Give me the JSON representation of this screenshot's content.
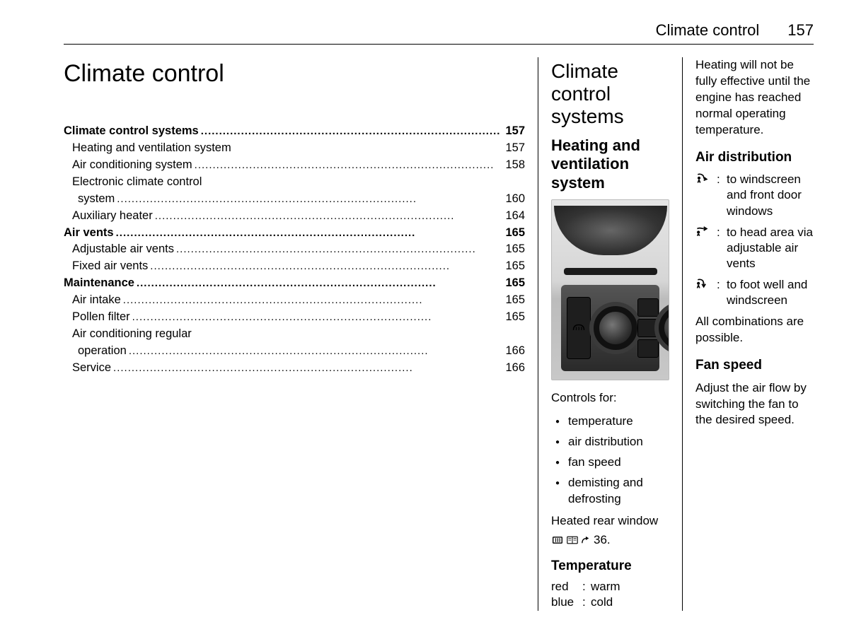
{
  "header": {
    "section_title": "Climate control",
    "page_number": "157"
  },
  "col1": {
    "chapter_title": "Climate control",
    "toc": [
      {
        "label": "Climate control systems",
        "page": "157",
        "bold": true,
        "indent": 0,
        "dots": true
      },
      {
        "label": "Heating and ventilation system",
        "page": "157",
        "bold": false,
        "indent": 1,
        "dots": false
      },
      {
        "label": "Air conditioning system",
        "page": "158",
        "bold": false,
        "indent": 1,
        "dots": true
      },
      {
        "label": "Electronic climate control",
        "page": "",
        "bold": false,
        "indent": 1,
        "dots": false
      },
      {
        "label": "system",
        "page": "160",
        "bold": false,
        "indent": 2,
        "dots": true
      },
      {
        "label": "Auxiliary heater",
        "page": "164",
        "bold": false,
        "indent": 1,
        "dots": true
      },
      {
        "label": "Air vents",
        "page": "165",
        "bold": true,
        "indent": 0,
        "dots": true
      },
      {
        "label": "Adjustable air vents",
        "page": "165",
        "bold": false,
        "indent": 1,
        "dots": true
      },
      {
        "label": "Fixed air vents",
        "page": "165",
        "bold": false,
        "indent": 1,
        "dots": true
      },
      {
        "label": "Maintenance",
        "page": "165",
        "bold": true,
        "indent": 0,
        "dots": true
      },
      {
        "label": "Air intake",
        "page": "165",
        "bold": false,
        "indent": 1,
        "dots": true
      },
      {
        "label": "Pollen filter",
        "page": "165",
        "bold": false,
        "indent": 1,
        "dots": true
      },
      {
        "label": "Air conditioning regular",
        "page": "",
        "bold": false,
        "indent": 1,
        "dots": false
      },
      {
        "label": "operation",
        "page": "166",
        "bold": false,
        "indent": 2,
        "dots": true
      },
      {
        "label": "Service",
        "page": "166",
        "bold": false,
        "indent": 1,
        "dots": true
      }
    ]
  },
  "col2": {
    "section_title": "Climate control systems",
    "subsection_title": "Heating and ventilation system",
    "controls_intro": "Controls for:",
    "controls": [
      "temperature",
      "air distribution",
      "fan speed",
      "demisting and defrosting"
    ],
    "heated_rear_window_text_a": "Heated rear window",
    "heated_rear_window_ref": "36.",
    "temperature_heading": "Temperature",
    "temperature_rows": [
      {
        "k": "red",
        "v": "warm"
      },
      {
        "k": "blue",
        "v": "cold"
      }
    ]
  },
  "col3": {
    "heating_note": "Heating will not be fully effective until the engine has reached normal operating temperature.",
    "air_dist_heading": "Air distribution",
    "air_dist_rows": [
      {
        "icon": "windscreen",
        "text": "to windscreen and front door windows"
      },
      {
        "icon": "head",
        "text": "to head area via adjustable air vents"
      },
      {
        "icon": "foot",
        "text": "to foot well and windscreen"
      }
    ],
    "air_dist_note": "All combinations are possible.",
    "fan_heading": "Fan speed",
    "fan_text": "Adjust the air flow by switching the fan to the desired speed."
  }
}
